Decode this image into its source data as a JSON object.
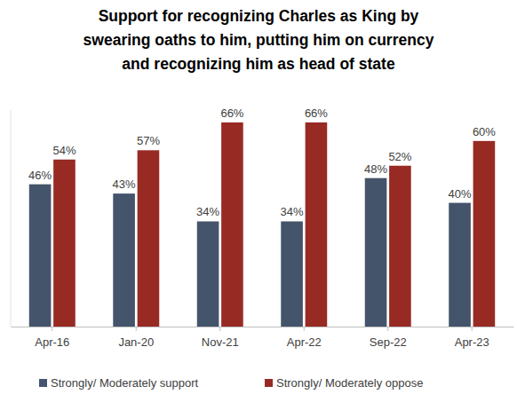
{
  "chart_data": {
    "type": "bar",
    "title": "Support for recognizing Charles as King by swearing oaths to him, putting him on currency and recognizing him as head of state",
    "categories": [
      "Apr-16",
      "Jan-20",
      "Nov-21",
      "Apr-22",
      "Sep-22",
      "Apr-23"
    ],
    "series": [
      {
        "name": "Strongly/ Moderately support",
        "color": "#44546a",
        "values": [
          46,
          43,
          34,
          34,
          48,
          40
        ],
        "value_labels": [
          "46%",
          "43%",
          "34%",
          "34%",
          "48%",
          "40%"
        ]
      },
      {
        "name": "Strongly/ Moderately oppose",
        "color": "#982a24",
        "values": [
          54,
          57,
          66,
          66,
          52,
          60
        ],
        "value_labels": [
          "54%",
          "57%",
          "66%",
          "66%",
          "52%",
          "60%"
        ]
      }
    ],
    "ylim": [
      0,
      70
    ],
    "data_labels": true,
    "tick_labels": "x",
    "legend": "bottom",
    "grid": false
  }
}
